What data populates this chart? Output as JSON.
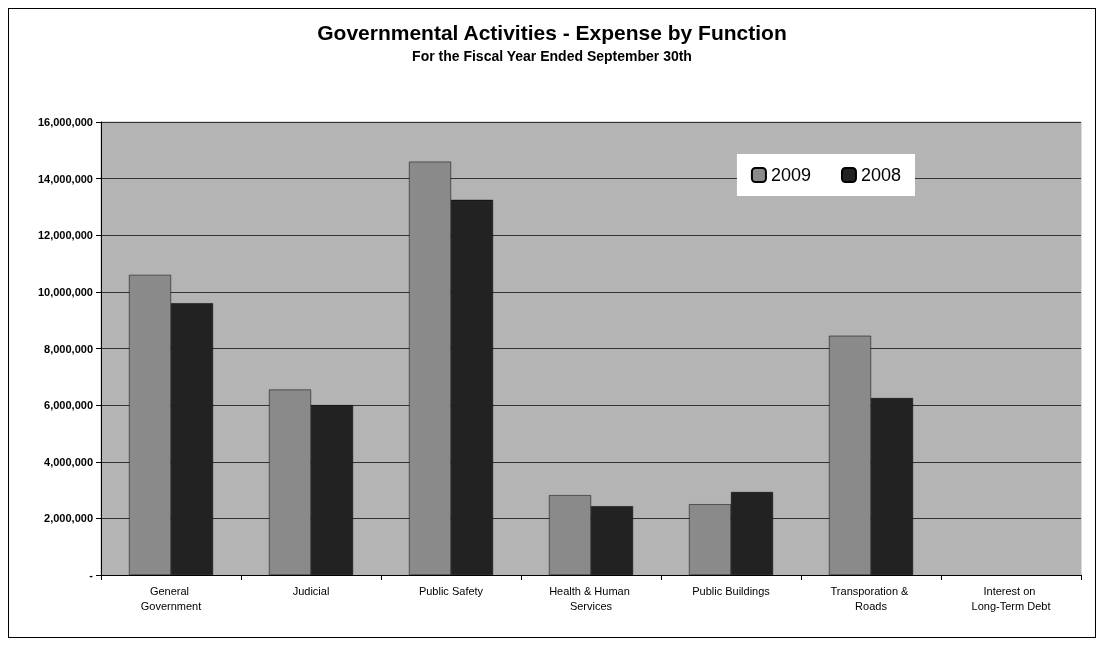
{
  "chart_data": {
    "type": "bar",
    "title": "Governmental Activities - Expense by Function",
    "subtitle": "For the Fiscal Year Ended September 30th",
    "categories": [
      "General Government",
      "Judicial",
      "Public Safety",
      "Health & Human Services",
      "Public Buildings",
      "Transporation & Roads",
      "Interest on Long-Term Debt"
    ],
    "series": [
      {
        "name": "2009",
        "color": "#8a8a8a",
        "values": [
          10600000,
          6550000,
          14600000,
          2820000,
          2500000,
          8450000,
          null
        ]
      },
      {
        "name": "2008",
        "color": "#222222",
        "values": [
          9600000,
          6000000,
          13250000,
          2430000,
          2930000,
          6250000,
          null
        ]
      }
    ],
    "ylim": [
      0,
      16000000
    ],
    "yticks": [
      {
        "value": 0,
        "label": "-"
      },
      {
        "value": 2000000,
        "label": "2,000,000"
      },
      {
        "value": 4000000,
        "label": "4,000,000"
      },
      {
        "value": 6000000,
        "label": "6,000,000"
      },
      {
        "value": 8000000,
        "label": "8,000,000"
      },
      {
        "value": 10000000,
        "label": "10,000,000"
      },
      {
        "value": 12000000,
        "label": "12,000,000"
      },
      {
        "value": 14000000,
        "label": "14,000,000"
      },
      {
        "value": 16000000,
        "label": "16,000,000"
      }
    ],
    "grid": "y",
    "legend": "top right"
  }
}
